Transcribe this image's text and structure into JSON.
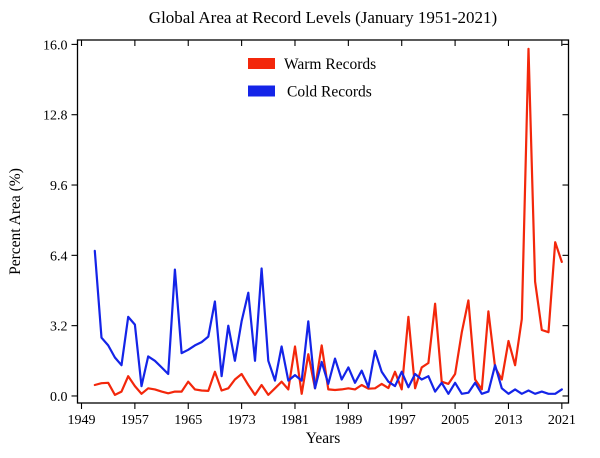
{
  "title": "Global Area at Record Levels (January 1951-2021)",
  "chart_data": {
    "type": "line",
    "title": "Global Area at Record Levels (January 1951-2021)",
    "xlabel": "Years",
    "ylabel": "Percent Area (%)",
    "grid": false,
    "xlim": [
      1948.4,
      2022.0
    ],
    "ylim": [
      -0.32,
      16.2
    ],
    "x_ticks": [
      1949,
      1957,
      1965,
      1973,
      1981,
      1989,
      1997,
      2005,
      2013,
      2021
    ],
    "y_ticks": [
      "0.0",
      "3.2",
      "6.4",
      "9.6",
      "12.8",
      "16.0"
    ],
    "y_tick_values": [
      0.0,
      3.2,
      6.4,
      9.6,
      12.8,
      16.0
    ],
    "legend_position": "top-center-inside",
    "x": [
      1951,
      1952,
      1953,
      1954,
      1955,
      1956,
      1957,
      1958,
      1959,
      1960,
      1961,
      1962,
      1963,
      1964,
      1965,
      1966,
      1967,
      1968,
      1969,
      1970,
      1971,
      1972,
      1973,
      1974,
      1975,
      1976,
      1977,
      1978,
      1979,
      1980,
      1981,
      1982,
      1983,
      1984,
      1985,
      1986,
      1987,
      1988,
      1989,
      1990,
      1991,
      1992,
      1993,
      1994,
      1995,
      1996,
      1997,
      1998,
      1999,
      2000,
      2001,
      2002,
      2003,
      2004,
      2005,
      2006,
      2007,
      2008,
      2009,
      2010,
      2011,
      2012,
      2013,
      2014,
      2015,
      2016,
      2017,
      2018,
      2019,
      2020,
      2021
    ],
    "series": [
      {
        "name": "Warm Records",
        "color": "#f3270b",
        "values": [
          0.5,
          0.58,
          0.6,
          0.05,
          0.2,
          0.9,
          0.45,
          0.1,
          0.35,
          0.3,
          0.2,
          0.12,
          0.2,
          0.2,
          0.65,
          0.3,
          0.25,
          0.23,
          1.1,
          0.25,
          0.35,
          0.75,
          1.0,
          0.5,
          0.05,
          0.5,
          0.05,
          0.35,
          0.65,
          0.3,
          2.25,
          0.1,
          1.9,
          0.35,
          2.3,
          0.3,
          0.27,
          0.3,
          0.35,
          0.3,
          0.5,
          0.33,
          0.35,
          0.55,
          0.36,
          1.1,
          0.3,
          3.6,
          0.35,
          1.3,
          1.5,
          4.2,
          0.65,
          0.55,
          1.0,
          2.9,
          4.35,
          0.75,
          0.3,
          3.85,
          1.3,
          0.75,
          2.5,
          1.4,
          3.5,
          15.8,
          5.2,
          3.0,
          2.9,
          7.0,
          6.1
        ]
      },
      {
        "name": "Cold Records",
        "color": "#1424e8",
        "values": [
          6.6,
          2.65,
          2.3,
          1.75,
          1.4,
          3.6,
          3.25,
          0.45,
          1.8,
          1.6,
          1.3,
          1.0,
          5.75,
          1.95,
          2.1,
          2.3,
          2.45,
          2.7,
          4.3,
          0.9,
          3.2,
          1.6,
          3.4,
          4.7,
          1.6,
          5.8,
          1.6,
          0.7,
          2.25,
          0.7,
          0.95,
          0.7,
          3.4,
          0.35,
          1.55,
          0.55,
          1.7,
          0.75,
          1.3,
          0.6,
          1.15,
          0.4,
          2.05,
          1.1,
          0.65,
          0.45,
          1.1,
          0.4,
          1.0,
          0.75,
          0.9,
          0.2,
          0.6,
          0.1,
          0.6,
          0.1,
          0.15,
          0.6,
          0.1,
          0.2,
          1.4,
          0.35,
          0.1,
          0.3,
          0.1,
          0.25,
          0.1,
          0.2,
          0.1,
          0.1,
          0.3
        ]
      }
    ]
  }
}
